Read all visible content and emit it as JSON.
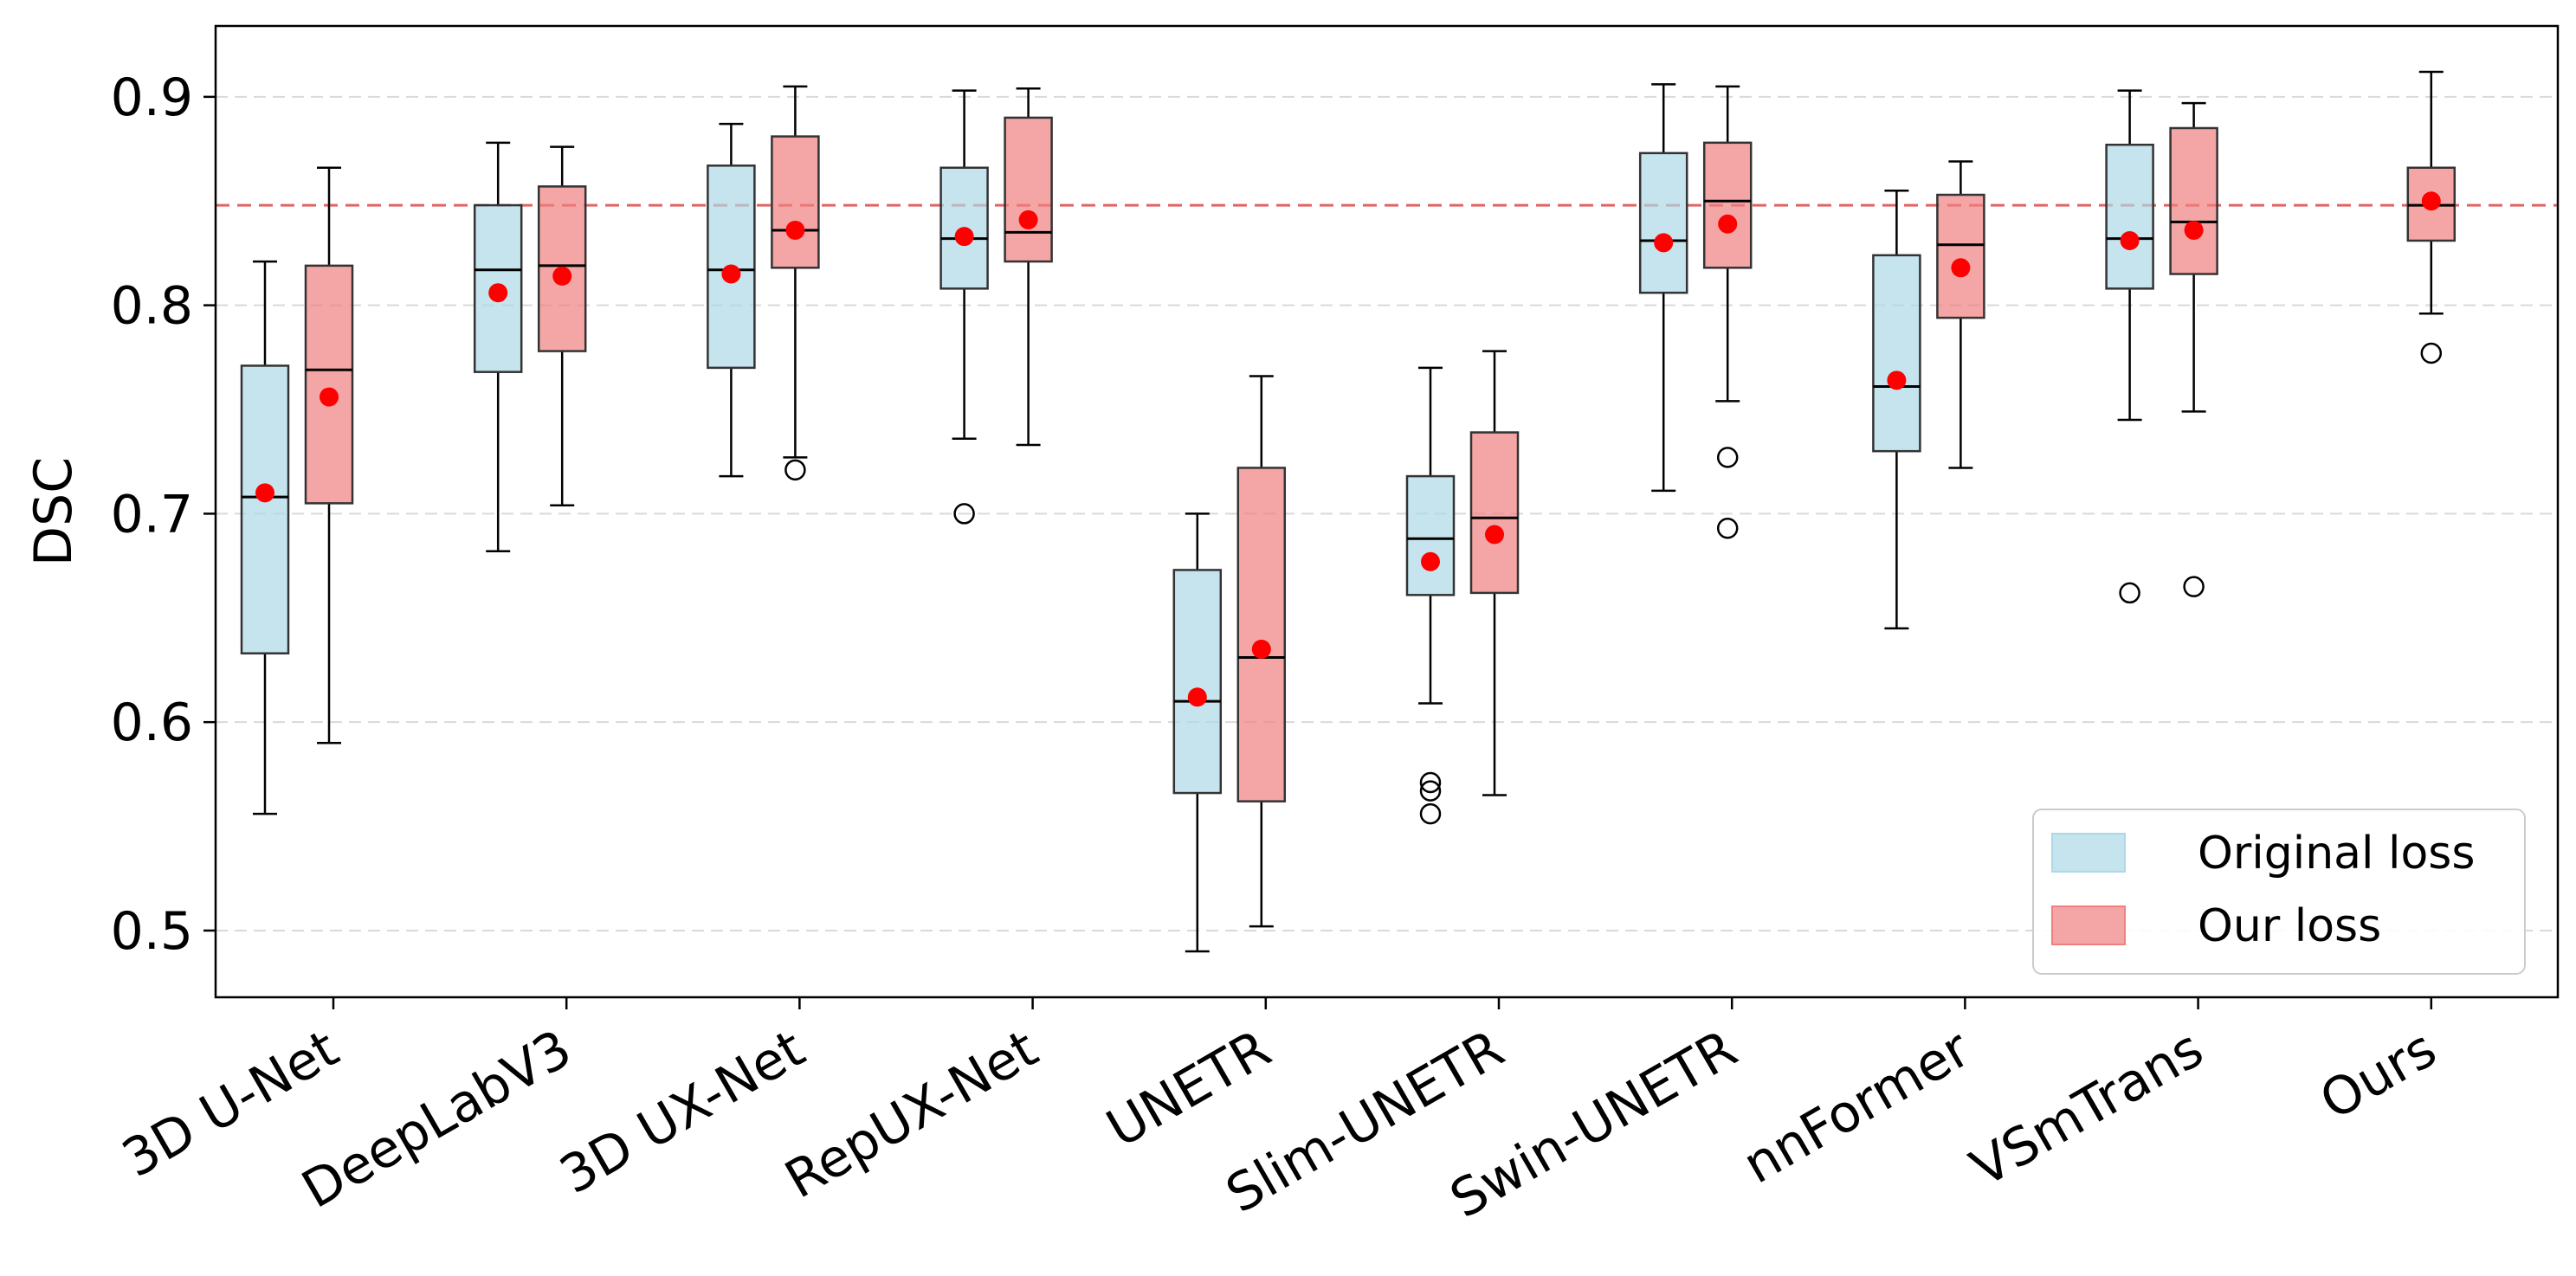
{
  "chart_data": {
    "type": "box",
    "title": "",
    "xlabel": "",
    "ylabel": "DSC",
    "ylim": [
      0.468,
      0.934
    ],
    "yticks": [
      0.5,
      0.6,
      0.7,
      0.8,
      0.9
    ],
    "ytick_labels": [
      "0.5",
      "0.6",
      "0.7",
      "0.8",
      "0.9"
    ],
    "grid": "horizontal dashed",
    "reference_line": {
      "value": 0.848,
      "color": "#e06666",
      "style": "dashed"
    },
    "categories": [
      "3D U-Net",
      "DeepLabV3",
      "3D UX-Net",
      "RepUX-Net",
      "UNETR",
      "Slim-UNETR",
      "Swin-UNETR",
      "nnFormer",
      "VSmTrans",
      "Ours"
    ],
    "legend": {
      "position": "bottom-right",
      "entries": [
        {
          "label": "Original loss",
          "color": "#add8e6"
        },
        {
          "label": "Our loss",
          "color": "#f08080"
        }
      ]
    },
    "series": [
      {
        "name": "Original loss",
        "color": "#add8e6",
        "boxes": [
          {
            "category": "3D U-Net",
            "whisker_low": 0.556,
            "q1": 0.633,
            "median": 0.708,
            "q3": 0.771,
            "whisker_high": 0.821,
            "mean": 0.71,
            "outliers": []
          },
          {
            "category": "DeepLabV3",
            "whisker_low": 0.682,
            "q1": 0.768,
            "median": 0.817,
            "q3": 0.848,
            "whisker_high": 0.878,
            "mean": 0.806,
            "outliers": []
          },
          {
            "category": "3D UX-Net",
            "whisker_low": 0.718,
            "q1": 0.77,
            "median": 0.817,
            "q3": 0.867,
            "whisker_high": 0.887,
            "mean": 0.815,
            "outliers": []
          },
          {
            "category": "RepUX-Net",
            "whisker_low": 0.736,
            "q1": 0.808,
            "median": 0.832,
            "q3": 0.866,
            "whisker_high": 0.903,
            "mean": 0.833,
            "outliers": [
              0.7
            ]
          },
          {
            "category": "UNETR",
            "whisker_low": 0.49,
            "q1": 0.566,
            "median": 0.61,
            "q3": 0.673,
            "whisker_high": 0.7,
            "mean": 0.612,
            "outliers": []
          },
          {
            "category": "Slim-UNETR",
            "whisker_low": 0.609,
            "q1": 0.661,
            "median": 0.688,
            "q3": 0.718,
            "whisker_high": 0.77,
            "mean": 0.677,
            "outliers": [
              0.571,
              0.567,
              0.556
            ]
          },
          {
            "category": "Swin-UNETR",
            "whisker_low": 0.711,
            "q1": 0.806,
            "median": 0.831,
            "q3": 0.873,
            "whisker_high": 0.906,
            "mean": 0.83,
            "outliers": []
          },
          {
            "category": "nnFormer",
            "whisker_low": 0.645,
            "q1": 0.73,
            "median": 0.761,
            "q3": 0.824,
            "whisker_high": 0.855,
            "mean": 0.764,
            "outliers": []
          },
          {
            "category": "VSmTrans",
            "whisker_low": 0.745,
            "q1": 0.808,
            "median": 0.832,
            "q3": 0.877,
            "whisker_high": 0.903,
            "mean": 0.831,
            "outliers": [
              0.662
            ]
          }
        ]
      },
      {
        "name": "Our loss",
        "color": "#f08080",
        "boxes": [
          {
            "category": "3D U-Net",
            "whisker_low": 0.59,
            "q1": 0.705,
            "median": 0.769,
            "q3": 0.819,
            "whisker_high": 0.866,
            "mean": 0.756,
            "outliers": []
          },
          {
            "category": "DeepLabV3",
            "whisker_low": 0.704,
            "q1": 0.778,
            "median": 0.819,
            "q3": 0.857,
            "whisker_high": 0.876,
            "mean": 0.814,
            "outliers": []
          },
          {
            "category": "3D UX-Net",
            "whisker_low": 0.727,
            "q1": 0.818,
            "median": 0.836,
            "q3": 0.881,
            "whisker_high": 0.905,
            "mean": 0.836,
            "outliers": [
              0.721
            ]
          },
          {
            "category": "RepUX-Net",
            "whisker_low": 0.733,
            "q1": 0.821,
            "median": 0.835,
            "q3": 0.89,
            "whisker_high": 0.904,
            "mean": 0.841,
            "outliers": []
          },
          {
            "category": "UNETR",
            "whisker_low": 0.502,
            "q1": 0.562,
            "median": 0.631,
            "q3": 0.722,
            "whisker_high": 0.766,
            "mean": 0.635,
            "outliers": []
          },
          {
            "category": "Slim-UNETR",
            "whisker_low": 0.565,
            "q1": 0.662,
            "median": 0.698,
            "q3": 0.739,
            "whisker_high": 0.778,
            "mean": 0.69,
            "outliers": []
          },
          {
            "category": "Swin-UNETR",
            "whisker_low": 0.754,
            "q1": 0.818,
            "median": 0.85,
            "q3": 0.878,
            "whisker_high": 0.905,
            "mean": 0.839,
            "outliers": [
              0.727,
              0.693
            ]
          },
          {
            "category": "nnFormer",
            "whisker_low": 0.722,
            "q1": 0.794,
            "median": 0.829,
            "q3": 0.853,
            "whisker_high": 0.869,
            "mean": 0.818,
            "outliers": []
          },
          {
            "category": "VSmTrans",
            "whisker_low": 0.749,
            "q1": 0.815,
            "median": 0.84,
            "q3": 0.885,
            "whisker_high": 0.897,
            "mean": 0.836,
            "outliers": [
              0.665
            ]
          },
          {
            "category": "Ours",
            "whisker_low": 0.796,
            "q1": 0.831,
            "median": 0.848,
            "q3": 0.866,
            "whisker_high": 0.912,
            "mean": 0.85,
            "outliers": [
              0.777
            ]
          }
        ]
      }
    ]
  }
}
